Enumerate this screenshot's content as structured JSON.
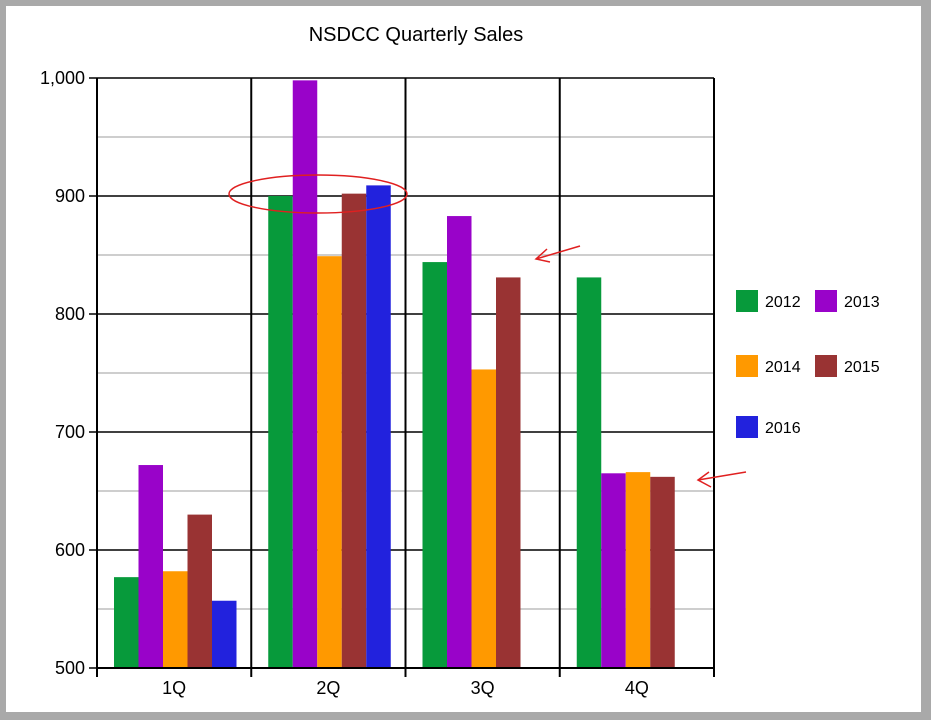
{
  "colors": {
    "page_border": "#a9a9a9",
    "annotation": "#e02020"
  },
  "chart_data": {
    "type": "bar",
    "title": "NSDCC Quarterly Sales",
    "xlabel": "",
    "ylabel": "",
    "ylim": [
      500,
      1000
    ],
    "yticks": [
      "1,000",
      "900",
      "800",
      "700",
      "600",
      "500"
    ],
    "ytick_values": [
      1000,
      900,
      800,
      700,
      600,
      500
    ],
    "grid": true,
    "legend_position": "right",
    "categories": [
      "1Q",
      "2Q",
      "3Q",
      "4Q"
    ],
    "series": [
      {
        "name": "2012",
        "color": "#079a3b",
        "values": [
          577,
          900,
          844,
          831
        ]
      },
      {
        "name": "2013",
        "color": "#9903c9",
        "values": [
          672,
          998,
          883,
          665
        ]
      },
      {
        "name": "2014",
        "color": "#ff9900",
        "values": [
          582,
          849,
          753,
          666
        ]
      },
      {
        "name": "2015",
        "color": "#993333",
        "values": [
          630,
          902,
          831,
          662
        ]
      },
      {
        "name": "2016",
        "color": "#2222dd",
        "values": [
          557,
          909,
          null,
          null
        ]
      }
    ],
    "annotations": [
      {
        "type": "ellipse",
        "description": "circle around 2Q values near 900"
      },
      {
        "type": "arrow",
        "description": "arrow pointing to 3Q"
      },
      {
        "type": "arrow",
        "description": "arrow pointing to 4Q"
      }
    ]
  }
}
